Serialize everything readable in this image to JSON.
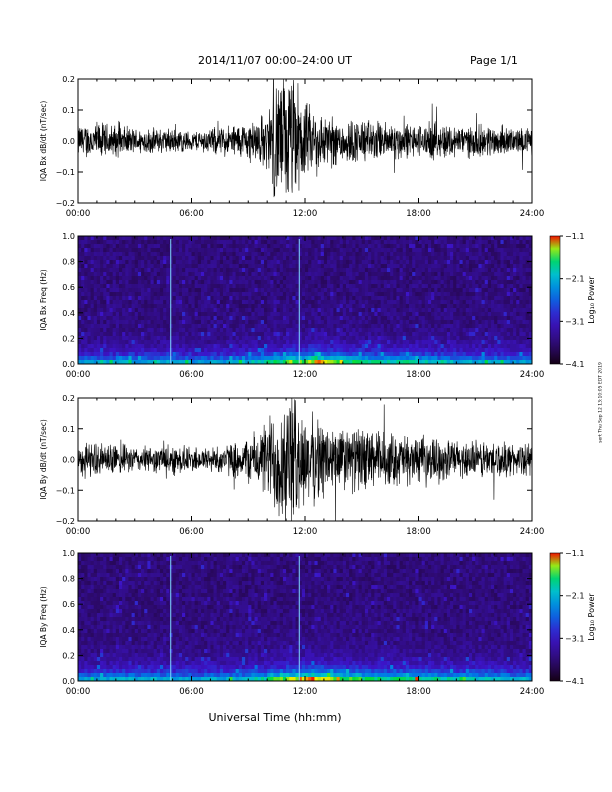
{
  "header": {
    "title": "2014/11/07  00:00–24:00 UT",
    "page": "Page 1/1"
  },
  "footer": {
    "xlabel": "Universal Time (hh:mm)",
    "side_note": "sert Thu Sep 12 13:10:05 EDT 2019"
  },
  "chart_data": [
    {
      "type": "line",
      "ylabel": "IQA Bx dB/dt (nT/sec)",
      "x_ticks": [
        "00:00",
        "06:00",
        "12:00",
        "18:00",
        "24:00"
      ],
      "y_ticks": [
        "0.2",
        "0.1",
        "0.0",
        "−0.1",
        "−0.2"
      ],
      "xlim": [
        0,
        24
      ],
      "ylim": [
        -0.2,
        0.2
      ],
      "series": [
        {
          "x": [
            0,
            1,
            2,
            3,
            4,
            5,
            6,
            7,
            8,
            9,
            10,
            10.5,
            11,
            11.5,
            12,
            12.5,
            13,
            14,
            15,
            16,
            17,
            18,
            19,
            20,
            21,
            22,
            23,
            24
          ],
          "envelope": [
            0.05,
            0.06,
            0.05,
            0.04,
            0.04,
            0.04,
            0.03,
            0.04,
            0.05,
            0.06,
            0.09,
            0.2,
            0.2,
            0.2,
            0.12,
            0.1,
            0.09,
            0.07,
            0.07,
            0.06,
            0.06,
            0.05,
            0.06,
            0.05,
            0.05,
            0.05,
            0.04,
            0.04
          ]
        }
      ],
      "color": "#000000"
    },
    {
      "type": "heatmap",
      "ylabel": "IQA Bx Freq (Hz)",
      "x_ticks": [
        "00:00",
        "06:00",
        "12:00",
        "18:00",
        "24:00"
      ],
      "y_ticks": [
        "1.0",
        "0.8",
        "0.6",
        "0.4",
        "0.2",
        "0.0"
      ],
      "xlim": [
        0,
        24
      ],
      "ylim": [
        0,
        1
      ],
      "colorbar": {
        "label": "Log₁₀ Power",
        "ticks": [
          "−1.1",
          "−2.1",
          "−3.1",
          "−4.1"
        ],
        "range": [
          -4.1,
          -1.1
        ]
      },
      "activity_by_hour": [
        0.25,
        0.3,
        0.35,
        0.3,
        0.35,
        0.3,
        0.25,
        0.3,
        0.35,
        0.45,
        0.6,
        0.75,
        0.85,
        0.75,
        0.65,
        0.55,
        0.5,
        0.55,
        0.45,
        0.4,
        0.35,
        0.35,
        0.3,
        0.3
      ],
      "vertical_lines_hour": [
        4.9,
        11.7
      ]
    },
    {
      "type": "line",
      "ylabel": "IQA By dB/dt (nT/sec)",
      "x_ticks": [
        "00:00",
        "06:00",
        "12:00",
        "18:00",
        "24:00"
      ],
      "y_ticks": [
        "0.2",
        "0.1",
        "0.0",
        "−0.1",
        "−0.2"
      ],
      "xlim": [
        0,
        24
      ],
      "ylim": [
        -0.2,
        0.2
      ],
      "series": [
        {
          "x": [
            0,
            1,
            2,
            3,
            4,
            5,
            6,
            7,
            8,
            9,
            10,
            10.5,
            11,
            11.5,
            12,
            12.5,
            13,
            14,
            15,
            16,
            17,
            18,
            19,
            20,
            21,
            22,
            23,
            24
          ],
          "envelope": [
            0.06,
            0.05,
            0.05,
            0.04,
            0.04,
            0.05,
            0.04,
            0.04,
            0.05,
            0.07,
            0.12,
            0.2,
            0.2,
            0.2,
            0.14,
            0.14,
            0.12,
            0.1,
            0.1,
            0.09,
            0.08,
            0.07,
            0.07,
            0.06,
            0.06,
            0.06,
            0.05,
            0.05
          ]
        }
      ],
      "color": "#000000"
    },
    {
      "type": "heatmap",
      "ylabel": "IQA By Freq (Hz)",
      "x_ticks": [
        "00:00",
        "06:00",
        "12:00",
        "18:00",
        "24:00"
      ],
      "y_ticks": [
        "1.0",
        "0.8",
        "0.6",
        "0.4",
        "0.2",
        "0.0"
      ],
      "xlim": [
        0,
        24
      ],
      "ylim": [
        0,
        1
      ],
      "colorbar": {
        "label": "Log₁₀ Power",
        "ticks": [
          "−1.1",
          "−2.1",
          "−3.1",
          "−4.1"
        ],
        "range": [
          -4.1,
          -1.1
        ]
      },
      "activity_by_hour": [
        0.3,
        0.35,
        0.4,
        0.35,
        0.4,
        0.35,
        0.3,
        0.35,
        0.4,
        0.5,
        0.7,
        0.85,
        0.9,
        0.8,
        0.7,
        0.6,
        0.6,
        0.6,
        0.55,
        0.5,
        0.45,
        0.45,
        0.4,
        0.35
      ],
      "vertical_lines_hour": [
        4.9,
        11.7
      ]
    }
  ]
}
